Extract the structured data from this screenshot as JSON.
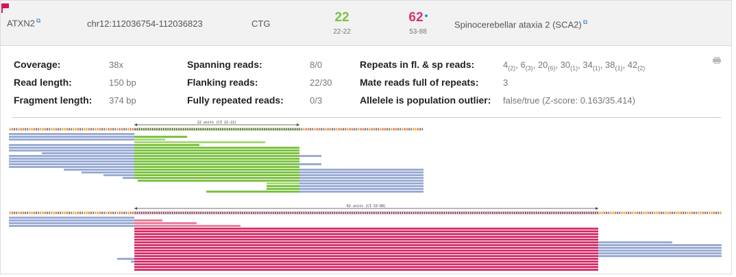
{
  "header": {
    "gene": "ATXN2",
    "locus": "chr12:112036754-112036823",
    "motif": "CTG",
    "allele1": {
      "count": "22",
      "range": "22-22"
    },
    "allele2": {
      "count": "62",
      "range": "53-88"
    },
    "disease": "Spinocerebellar ataxia 2 (SCA2)"
  },
  "stats": {
    "coverage_label": "Coverage:",
    "coverage": "38x",
    "read_length_label": "Read length:",
    "read_length": "150 bp",
    "fragment_length_label": "Fragment length:",
    "fragment_length": "374 bp",
    "spanning_label": "Spanning reads:",
    "spanning": "8/0",
    "flanking_label": "Flanking reads:",
    "flanking": "22/30",
    "fully_repeated_label": "Fully repeated reads:",
    "fully_repeated": "0/3",
    "repeats_label": "Repeats in fl. & sp reads:",
    "repeats": [
      {
        "n": "4",
        "c": "2"
      },
      {
        "n": "6",
        "c": "3"
      },
      {
        "n": "20",
        "c": "6"
      },
      {
        "n": "30",
        "c": "1"
      },
      {
        "n": "34",
        "c": "1"
      },
      {
        "n": "38",
        "c": "1"
      },
      {
        "n": "42",
        "c": "2"
      }
    ],
    "mate_label": "Mate reads full of repeats:",
    "mate": "3",
    "outlier_label": "Allelele is population outlier:",
    "outlier": "false/true (Z-score: 0.163/35.414)"
  },
  "pileups": {
    "allele1_label": "22 units (CI 22-22)",
    "allele2_label": "62 units (CI 53-88)"
  },
  "colors": {
    "flank": "#9bacd4",
    "allele1": "#7dc243",
    "allele1_light": "#a8d97a",
    "allele2": "#d6336c",
    "allele2_light": "#e8809e",
    "accent": "#1a7bd8"
  }
}
